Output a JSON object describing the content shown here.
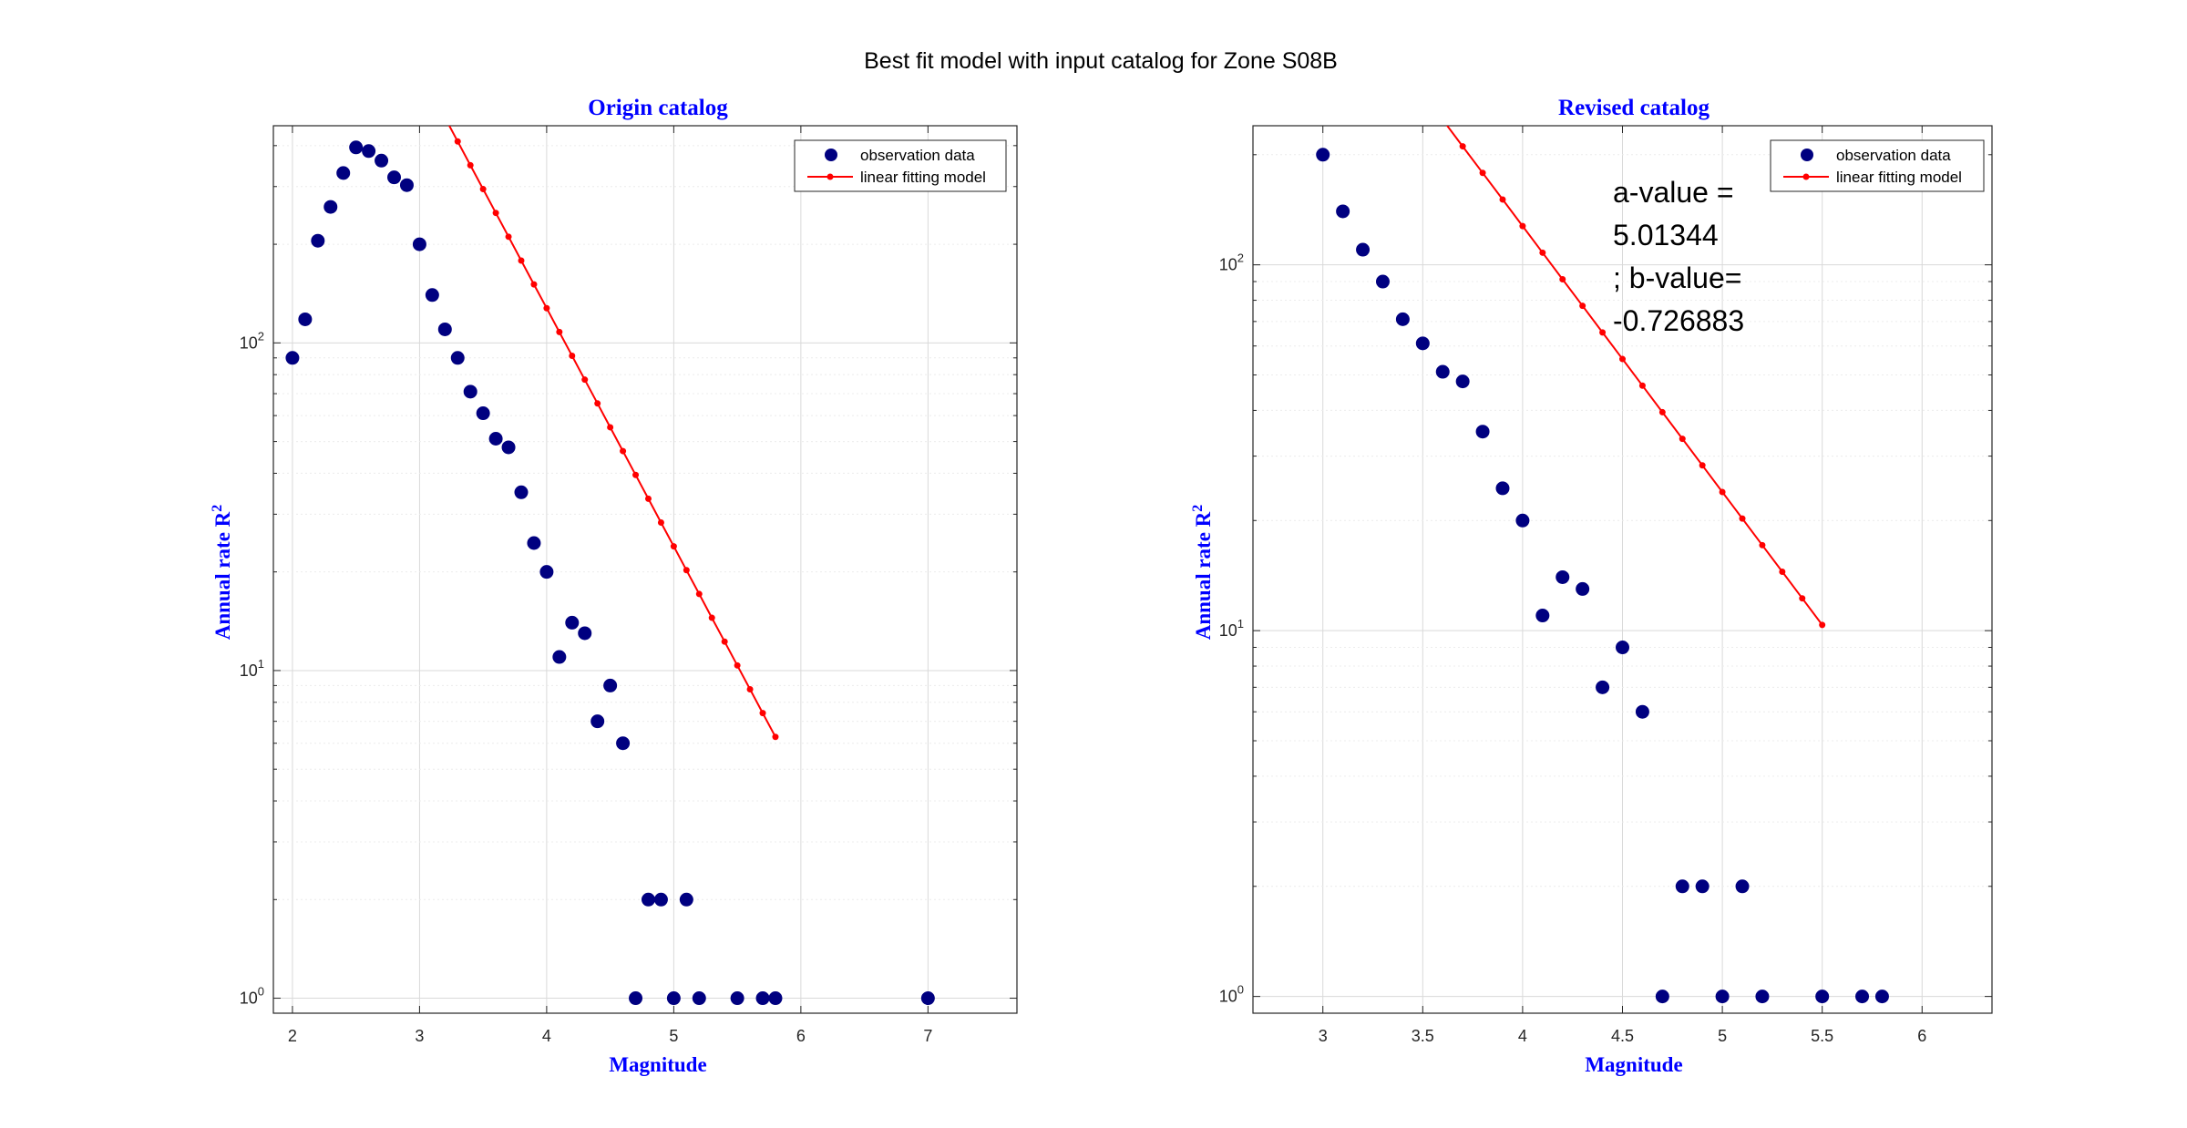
{
  "figure": {
    "title": "Best fit model with input catalog for Zone S08B"
  },
  "colors": {
    "observation": "#000080",
    "model": "#ff0000",
    "title_label": "#0000ff",
    "grid": "#d9d9d9"
  },
  "chart_data": [
    {
      "type": "scatter",
      "title": "Origin catalog",
      "xlabel": "Magnitude",
      "ylabel": "Annual rate R",
      "ylabel_superscript": "2",
      "xlim": [
        1.85,
        7.7
      ],
      "ylim": [
        0.9,
        460
      ],
      "yscale": "log",
      "grid": true,
      "legend_position": "top-right",
      "xticks": [
        "2",
        "3",
        "4",
        "5",
        "6",
        "7"
      ],
      "yticks": [
        {
          "base": "10",
          "exp": "0"
        },
        {
          "base": "10",
          "exp": "1"
        },
        {
          "base": "10",
          "exp": "2"
        }
      ],
      "series": [
        {
          "name": "observation data",
          "kind": "markers",
          "x": [
            2.0,
            2.1,
            2.2,
            2.3,
            2.4,
            2.5,
            2.6,
            2.7,
            2.8,
            2.9,
            3.0,
            3.1,
            3.2,
            3.3,
            3.4,
            3.5,
            3.6,
            3.7,
            3.8,
            3.9,
            4.0,
            4.1,
            4.2,
            4.3,
            4.4,
            4.5,
            4.6,
            4.7,
            4.8,
            4.9,
            5.0,
            5.1,
            5.2,
            5.5,
            5.7,
            5.8,
            7.0
          ],
          "y": [
            90,
            118,
            205,
            260,
            330,
            395,
            385,
            360,
            320,
            303,
            200,
            140,
            110,
            90,
            71,
            61,
            51,
            48,
            35,
            24.5,
            20,
            11,
            14,
            13,
            7,
            9,
            6,
            1,
            2,
            2,
            1,
            2,
            1,
            1,
            1,
            1,
            1
          ]
        },
        {
          "name": "linear fitting model",
          "kind": "line-with-dots",
          "a": 5.01344,
          "b": -0.726883,
          "x": [
            2.0,
            2.1,
            2.2,
            2.3,
            2.4,
            2.5,
            2.6,
            2.7,
            2.8,
            2.9,
            3.0,
            3.1,
            3.2,
            3.3,
            3.4,
            3.5,
            3.6,
            3.7,
            3.8,
            3.9,
            4.0,
            4.1,
            4.2,
            4.3,
            4.4,
            4.5,
            4.6,
            4.7,
            4.8,
            4.9,
            5.0,
            5.1,
            5.2,
            5.3,
            5.4,
            5.5,
            5.6,
            5.7,
            5.8
          ]
        }
      ]
    },
    {
      "type": "scatter",
      "title": "Revised catalog",
      "xlabel": "Magnitude",
      "ylabel": "Annual rate R",
      "ylabel_superscript": "2",
      "xlim": [
        2.65,
        6.35
      ],
      "ylim": [
        0.9,
        240
      ],
      "yscale": "log",
      "grid": true,
      "legend_position": "top-right",
      "xticks": [
        "3",
        "3.5",
        "4",
        "4.5",
        "5",
        "5.5",
        "6"
      ],
      "yticks": [
        {
          "base": "10",
          "exp": "0"
        },
        {
          "base": "10",
          "exp": "1"
        },
        {
          "base": "10",
          "exp": "2"
        }
      ],
      "annotation": [
        "a-value =",
        "5.01344",
        "; b-value=",
        "-0.726883"
      ],
      "series": [
        {
          "name": "observation data",
          "kind": "markers",
          "x": [
            3.0,
            3.1,
            3.2,
            3.3,
            3.4,
            3.5,
            3.6,
            3.7,
            3.8,
            3.9,
            4.0,
            4.1,
            4.2,
            4.3,
            4.4,
            4.5,
            4.6,
            4.7,
            4.8,
            4.9,
            5.0,
            5.1,
            5.2,
            5.5,
            5.7,
            5.8
          ],
          "y": [
            200,
            140,
            110,
            90,
            71,
            61,
            51,
            48,
            35,
            24.5,
            20,
            11,
            14,
            13,
            7,
            9,
            6,
            1,
            2,
            2,
            1,
            2,
            1,
            1,
            1,
            1
          ]
        },
        {
          "name": "linear fitting model",
          "kind": "line-with-dots",
          "a": 5.01344,
          "b": -0.726883,
          "x": [
            3.0,
            3.1,
            3.2,
            3.3,
            3.4,
            3.5,
            3.6,
            3.7,
            3.8,
            3.9,
            4.0,
            4.1,
            4.2,
            4.3,
            4.4,
            4.5,
            4.6,
            4.7,
            4.8,
            4.9,
            5.0,
            5.1,
            5.2,
            5.3,
            5.4,
            5.5
          ]
        }
      ]
    }
  ]
}
